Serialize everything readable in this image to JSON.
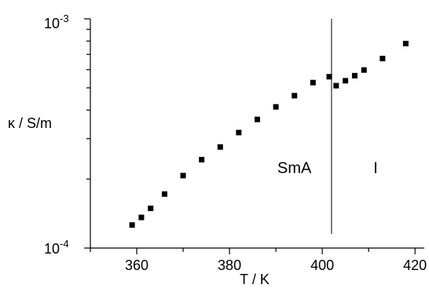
{
  "chart_data": {
    "type": "scatter",
    "title": "",
    "xlabel": "T / K",
    "ylabel": "κ / S/m",
    "xlim": [
      350,
      422
    ],
    "ylim": [
      0.0001,
      0.001
    ],
    "yscale": "log",
    "x_ticks": [
      "360",
      "380",
      "400",
      "420"
    ],
    "y_ticks": [
      {
        "base": "10",
        "exp": "-4"
      },
      {
        "base": "10",
        "exp": "-3"
      }
    ],
    "grid": false,
    "legend": "none",
    "marker_color": "#000000",
    "x": [
      359,
      361,
      363,
      366,
      370,
      374,
      378,
      382,
      386,
      390,
      394,
      398,
      401.5,
      403,
      405,
      407,
      409,
      413,
      418
    ],
    "y": [
      0.000126,
      0.000136,
      0.000149,
      0.000172,
      0.000207,
      0.000243,
      0.000276,
      0.000319,
      0.000364,
      0.000413,
      0.000462,
      0.000527,
      0.000559,
      0.000511,
      0.000537,
      0.000565,
      0.000598,
      0.000671,
      0.00078
    ],
    "vline": {
      "x": 402
    },
    "annotations": [
      {
        "text": "SmA",
        "x": 394,
        "y": 0.000212
      },
      {
        "text": "I",
        "x": 411.5,
        "y": 0.000212
      }
    ]
  }
}
